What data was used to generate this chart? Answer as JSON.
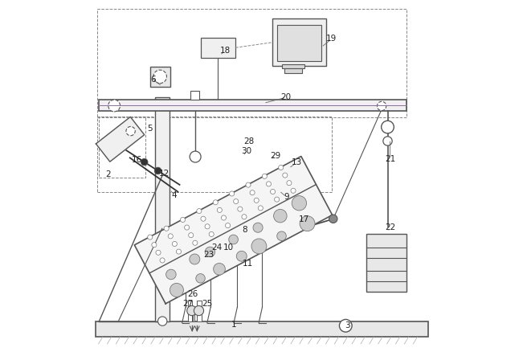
{
  "bg_color": "#ffffff",
  "line_color": "#555555",
  "dash_color": "#888888",
  "title": "",
  "figsize": [
    6.56,
    4.38
  ],
  "dpi": 100
}
